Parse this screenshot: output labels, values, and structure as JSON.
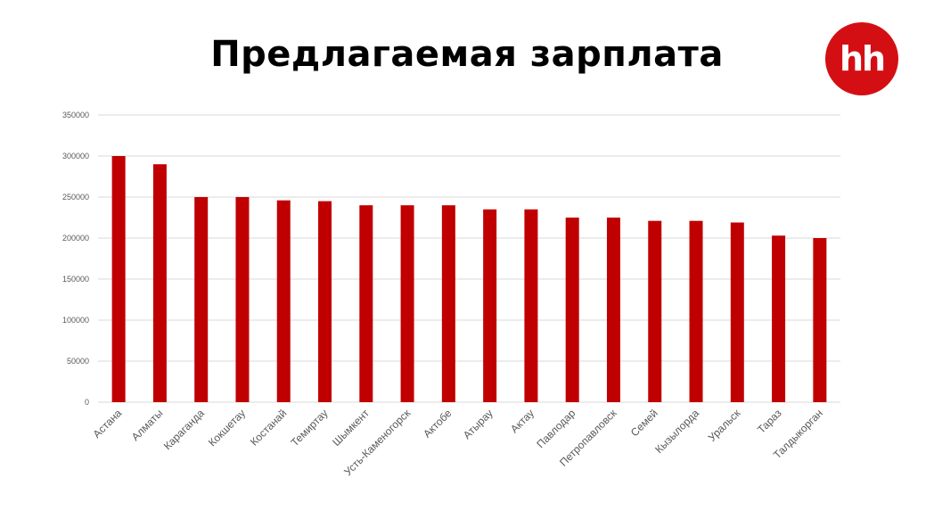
{
  "header": {
    "title": "Предлагаемая зарплата",
    "logo_text": "hh"
  },
  "colors": {
    "bar": "#c00000",
    "logo": "#d40f14",
    "grid": "#d9d9d9",
    "text": "#595959"
  },
  "chart_data": {
    "type": "bar",
    "title": "Предлагаемая зарплата",
    "xlabel": "",
    "ylabel": "",
    "ylim": [
      0,
      350000
    ],
    "yticks": [
      0,
      50000,
      100000,
      150000,
      200000,
      250000,
      300000,
      350000
    ],
    "grid": true,
    "categories": [
      "Астана",
      "Алматы",
      "Караганда",
      "Кокшетау",
      "Костанай",
      "Темиртау",
      "Шымкент",
      "Усть-Каменогорск",
      "Актобе",
      "Атырау",
      "Актау",
      "Павлодар",
      "Петропавловск",
      "Семей",
      "Кызылорда",
      "Уральск",
      "Тараз",
      "Талдыкорган"
    ],
    "values": [
      300000,
      290000,
      250000,
      250000,
      246000,
      245000,
      240000,
      240000,
      240000,
      235000,
      235000,
      225000,
      225000,
      221000,
      221000,
      219000,
      203000,
      200000
    ]
  }
}
